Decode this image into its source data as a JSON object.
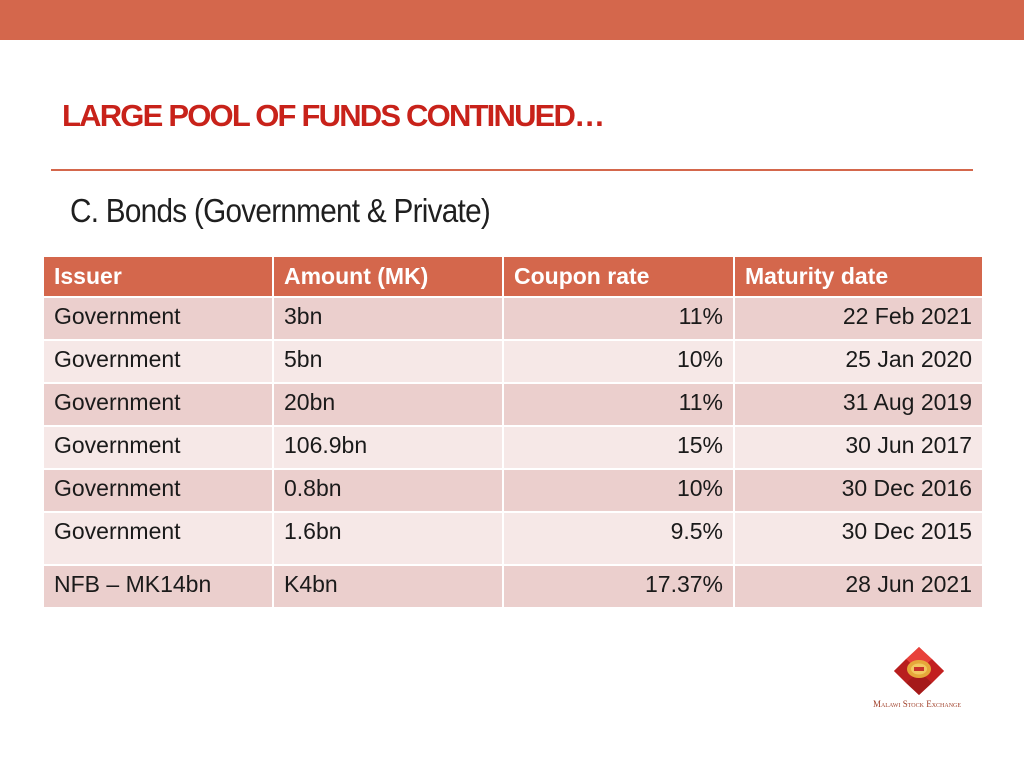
{
  "title": "LARGE POOL OF FUNDS CONTINUED…",
  "subtitle": "C. Bonds (Government & Private)",
  "table": {
    "headers": [
      "Issuer",
      "Amount (MK)",
      "Coupon rate",
      "Maturity date"
    ],
    "rows": [
      [
        "Government",
        "3bn",
        "11%",
        "22 Feb 2021"
      ],
      [
        "Government",
        "5bn",
        "10%",
        "25 Jan 2020"
      ],
      [
        "Government",
        "20bn",
        "11%",
        "31 Aug 2019"
      ],
      [
        "Government",
        "106.9bn",
        "15%",
        "30 Jun 2017"
      ],
      [
        "Government",
        "0.8bn",
        "10%",
        "30 Dec 2016"
      ],
      [
        "Government",
        "1.6bn",
        "9.5%",
        "30 Dec 2015"
      ],
      [
        "NFB – MK14bn",
        "K4bn",
        "17.37%",
        "28 Jun 2021"
      ]
    ]
  },
  "logo": {
    "text": "Malawi Stock Exchange",
    "icon": "malawi-stock-exchange-logo-icon"
  },
  "colors": {
    "accent": "#d4674c",
    "title": "#c8221a",
    "row_odd": "#ebcfcd",
    "row_even": "#f6e8e7"
  }
}
